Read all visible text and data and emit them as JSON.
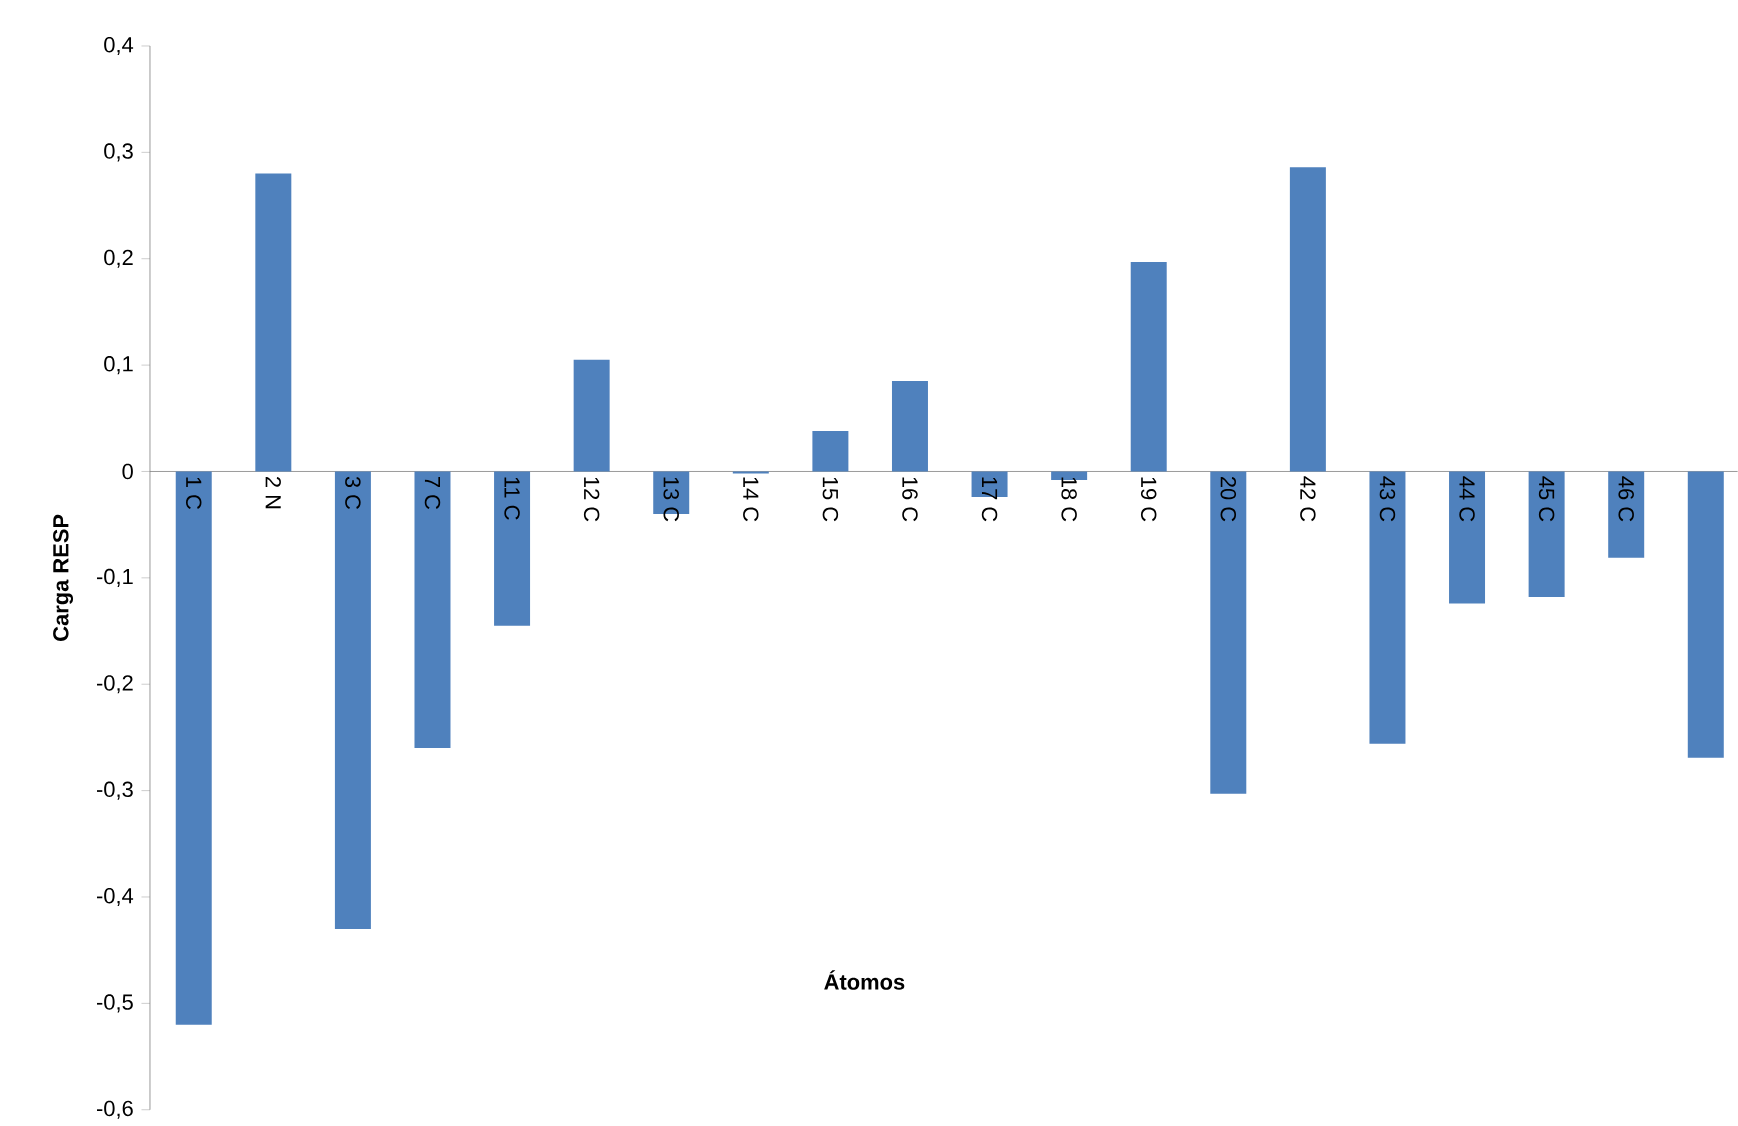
{
  "chart_data": {
    "type": "bar",
    "xlabel": "Átomos",
    "ylabel": "Carga RESP",
    "categories": [
      "1 C",
      "2 N",
      "3 C",
      "7 C",
      "11 C",
      "12 C",
      "13 C",
      "14 C",
      "15 C",
      "16 C",
      "17 C",
      "18 C",
      "19 C",
      "20 C",
      "42 C",
      "43 C",
      "44 C",
      "45 C",
      "46 C",
      null
    ],
    "values": [
      -0.52,
      0.28,
      -0.43,
      -0.26,
      -0.145,
      0.105,
      -0.04,
      -0.002,
      0.038,
      0.085,
      -0.024,
      -0.008,
      0.197,
      -0.303,
      0.286,
      -0.256,
      -0.124,
      -0.118,
      -0.081,
      -0.269
    ],
    "color": "#4f81bd",
    "ylim": [
      -0.6,
      0.4
    ],
    "yticks": [
      {
        "value": -0.6,
        "label": "-0,6"
      },
      {
        "value": -0.5,
        "label": "-0,5"
      },
      {
        "value": -0.4,
        "label": "-0,4"
      },
      {
        "value": -0.3,
        "label": "-0,3"
      },
      {
        "value": -0.2,
        "label": "-0,2"
      },
      {
        "value": -0.1,
        "label": "-0,1"
      },
      {
        "value": 0,
        "label": "0"
      },
      {
        "value": 0.1,
        "label": "0,1"
      },
      {
        "value": 0.2,
        "label": "0,2"
      },
      {
        "value": 0.3,
        "label": "0,3"
      },
      {
        "value": 0.4,
        "label": "0,4"
      }
    ],
    "grid": false
  }
}
